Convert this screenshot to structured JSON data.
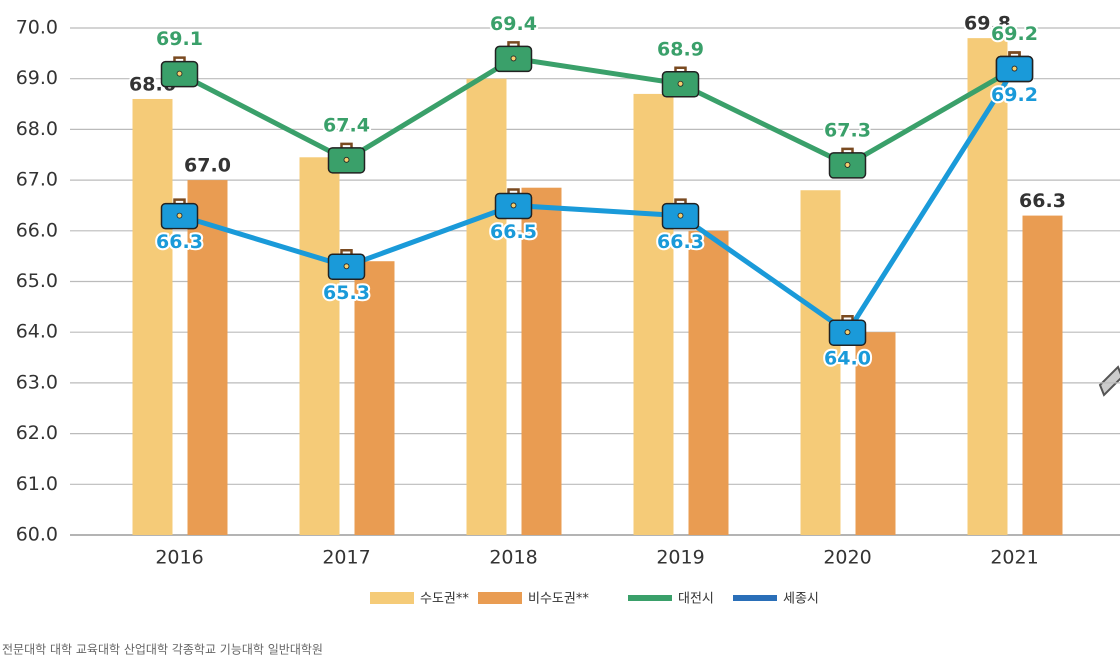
{
  "chart_data": {
    "type": "bar_line",
    "categories": [
      "2016",
      "2017",
      "2018",
      "2019",
      "2020",
      "2021"
    ],
    "series": [
      {
        "name": "수도권**",
        "type": "bar",
        "color": "#f5cb78",
        "values": [
          68.6,
          67.45,
          69.0,
          68.7,
          66.8,
          69.8
        ],
        "value_labels": [
          "68.6",
          null,
          null,
          null,
          null,
          "69.8"
        ]
      },
      {
        "name": "비수도권**",
        "type": "bar",
        "color": "#e99c52",
        "values": [
          67.0,
          65.4,
          66.85,
          66.0,
          64.0,
          66.3
        ],
        "value_labels": [
          "67.0",
          null,
          null,
          null,
          null,
          "66.3"
        ]
      },
      {
        "name": "대전시",
        "type": "line",
        "color": "#3aa06a",
        "values": [
          69.1,
          67.4,
          69.4,
          68.9,
          67.3,
          69.2
        ]
      },
      {
        "name": "세종시",
        "type": "line",
        "color": "#1a9ad9",
        "values": [
          66.3,
          65.3,
          66.5,
          66.3,
          64.0,
          69.2
        ],
        "value_labels": [
          "66.3",
          "65.3",
          "66.5",
          "66.3",
          "64.0",
          "69.2"
        ]
      }
    ],
    "ylim": [
      60,
      70
    ],
    "yticks": [
      {
        "value": 60,
        "label": "60.0"
      },
      {
        "value": 61,
        "label": "61.0"
      },
      {
        "value": 62,
        "label": "62.0"
      },
      {
        "value": 63,
        "label": "63.0"
      },
      {
        "value": 64,
        "label": "64.0"
      },
      {
        "value": 65,
        "label": "65.0"
      },
      {
        "value": 66,
        "label": "66.0"
      },
      {
        "value": 67,
        "label": "67.0"
      },
      {
        "value": 68,
        "label": "68.0"
      },
      {
        "value": 69,
        "label": "69.0"
      },
      {
        "value": 70,
        "label": "70.0"
      }
    ],
    "grid": true,
    "footnote": "전문대학 대학 교육대학 산업대학 각종학교 기능대학 일반대학원"
  }
}
